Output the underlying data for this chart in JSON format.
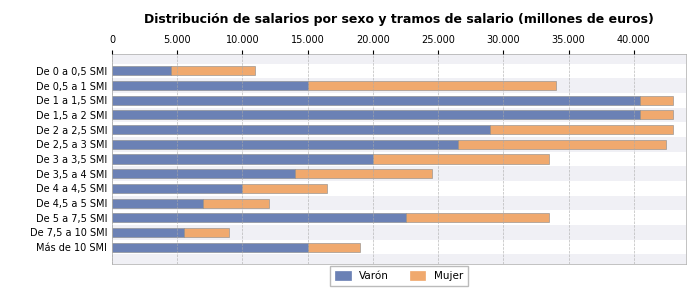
{
  "title": "Distribución de salarios por sexo y tramos de salario (millones de euros)",
  "categories": [
    "De 0 a 0,5 SMI",
    "De 0,5 a 1 SMI",
    "De 1 a 1,5 SMI",
    "De 1,5 a 2 SMI",
    "De 2 a 2,5 SMI",
    "De 2,5 a 3 SMI",
    "De 3 a 3,5 SMI",
    "De 3,5 a 4 SMI",
    "De 4 a 4,5 SMI",
    "De 4,5 a 5 SMI",
    "De 5 a 7,5 SMI",
    "De 7,5 a 10 SMI",
    "Más de 10 SMI"
  ],
  "varon": [
    4500,
    15000,
    40500,
    40500,
    29000,
    26500,
    20000,
    14000,
    10000,
    7000,
    22500,
    5500,
    15000
  ],
  "mujer": [
    6500,
    19000,
    2500,
    2500,
    14000,
    16000,
    13500,
    10500,
    6500,
    5000,
    11000,
    3500,
    4000
  ],
  "color_varon": "#6b81b5",
  "color_mujer": "#f0a96e",
  "color_varon_light": "#8fa3cb",
  "xlim": [
    0,
    44000
  ],
  "xticks": [
    0,
    5000,
    10000,
    15000,
    20000,
    25000,
    30000,
    35000,
    40000
  ],
  "xtick_labels": [
    "0",
    "5.000",
    "10.000",
    "15.000",
    "20.000",
    "25.000",
    "30.000",
    "35.000",
    "40.000"
  ],
  "legend_varon": "Varón",
  "legend_mujer": "Mujer",
  "bg_color": "#ffffff",
  "plot_bg_color_even": "#f0f0f5",
  "plot_bg_color_odd": "#ffffff",
  "title_fontsize": 9,
  "tick_fontsize": 7
}
